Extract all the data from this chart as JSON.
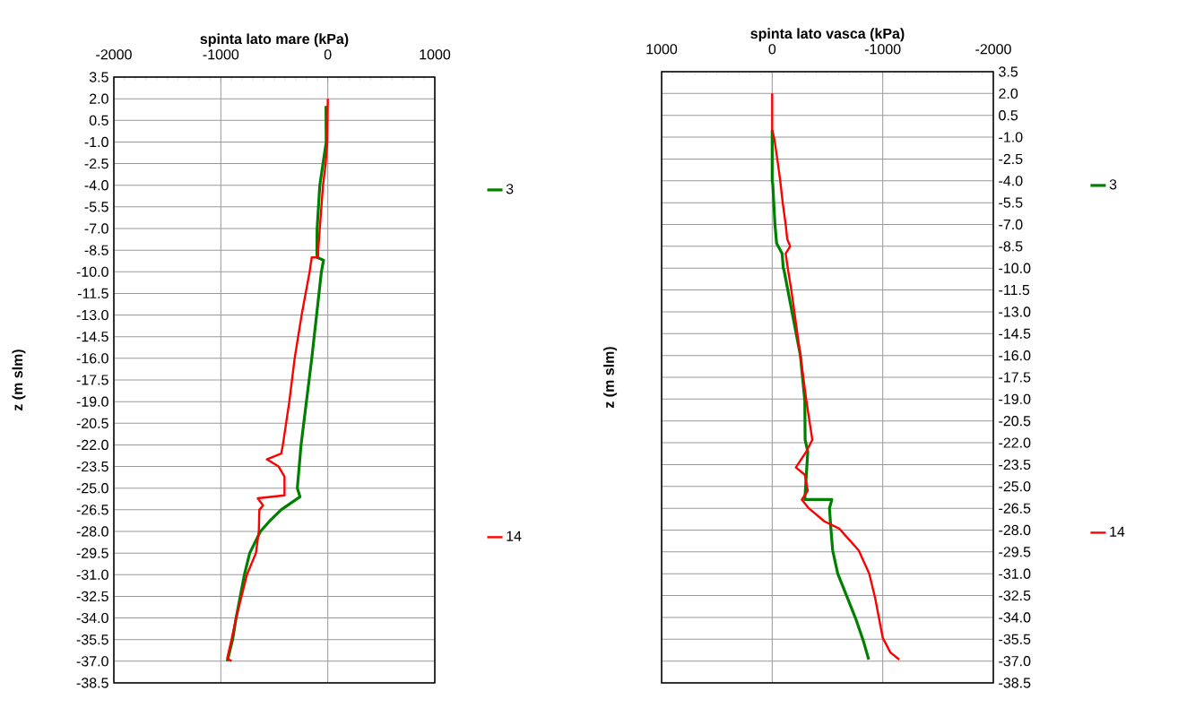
{
  "chart_data": [
    {
      "type": "line",
      "xlabel": "spinta lato mare (kPa)",
      "ylabel": "z  (m slm)",
      "xlim": [
        -2000,
        1000
      ],
      "xticks": [
        -2000,
        -1000,
        0,
        1000
      ],
      "ylim": [
        -38.5,
        3.5
      ],
      "yticks": [
        {
          "value": 3.5,
          "label": "3.5"
        },
        {
          "value": 2,
          "label": "2.0"
        },
        {
          "value": 0.5,
          "label": "0.5"
        },
        {
          "value": -1,
          "label": "-1.0"
        },
        {
          "value": -2.5,
          "label": "-2.5"
        },
        {
          "value": -4,
          "label": "-4.0"
        },
        {
          "value": -5.5,
          "label": "-5.5"
        },
        {
          "value": -7,
          "label": "-7.0"
        },
        {
          "value": -8.5,
          "label": "-8.5"
        },
        {
          "value": -10,
          "label": "-10.0"
        },
        {
          "value": -11.5,
          "label": "-11.5"
        },
        {
          "value": -13,
          "label": "-13.0"
        },
        {
          "value": -14.5,
          "label": "-14.5"
        },
        {
          "value": -16,
          "label": "-16.0"
        },
        {
          "value": -17.5,
          "label": "-17.5"
        },
        {
          "value": -19,
          "label": "-19.0"
        },
        {
          "value": -20.5,
          "label": "-20.5"
        },
        {
          "value": -22,
          "label": "-22.0"
        },
        {
          "value": -23.5,
          "label": "-23.5"
        },
        {
          "value": -25,
          "label": "-25.0"
        },
        {
          "value": -26.5,
          "label": "-26.5"
        },
        {
          "value": -28,
          "label": "-28.0"
        },
        {
          "value": -29.5,
          "label": "-29.5"
        },
        {
          "value": -31,
          "label": "-31.0"
        },
        {
          "value": -32.5,
          "label": "-32.5"
        },
        {
          "value": -34,
          "label": "-34.0"
        },
        {
          "value": -35.5,
          "label": "-35.5"
        },
        {
          "value": -37,
          "label": "-37.0"
        },
        {
          "value": -38.5,
          "label": "-38.5"
        }
      ],
      "grid": true,
      "legend": "right",
      "series": [
        {
          "name": "3",
          "color": "#008000",
          "x": [
            -17,
            -15,
            -75,
            -100,
            -102,
            -100,
            -40,
            -60,
            -150,
            -250,
            -285,
            -260,
            -437,
            -546,
            -630,
            -730,
            -780,
            -857,
            -890,
            -940
          ],
          "values": [
            1.5,
            -1.0,
            -4.0,
            -7.0,
            -8.5,
            -9.0,
            -9.2,
            -10.0,
            -16.0,
            -22.0,
            -25.0,
            -25.6,
            -26.5,
            -27.3,
            -28.0,
            -29.5,
            -31.0,
            -34.0,
            -35.5,
            -37.0
          ]
        },
        {
          "name": "14",
          "color": "#ff0000",
          "x": [
            0,
            -5,
            -20,
            -45,
            -75,
            -90,
            -90,
            -150,
            -170,
            -245,
            -310,
            -360,
            -420,
            -435,
            -570,
            -460,
            -405,
            -405,
            -655,
            -605,
            -640,
            -645,
            -672,
            -756,
            -857,
            -900,
            -940,
            -900
          ],
          "values": [
            2.0,
            -1.0,
            -2.5,
            -4.0,
            -7.0,
            -8.5,
            -9.0,
            -9.0,
            -10.0,
            -13.0,
            -16.0,
            -19.0,
            -22.0,
            -22.6,
            -23.0,
            -23.5,
            -24.2,
            -25.5,
            -25.7,
            -26.2,
            -26.5,
            -28.0,
            -29.5,
            -31.0,
            -34.0,
            -35.5,
            -36.8,
            -37.0
          ]
        }
      ]
    },
    {
      "type": "line",
      "xlabel": "spinta lato vasca (kPa)",
      "ylabel": "z  (m slm)",
      "xlim": [
        1000,
        -2000
      ],
      "xticks": [
        1000,
        0,
        -1000,
        -2000
      ],
      "ylim": [
        -38.5,
        3.5
      ],
      "yticks": [
        {
          "value": 3.5,
          "label": "3.5"
        },
        {
          "value": 2,
          "label": "2.0"
        },
        {
          "value": 0.5,
          "label": "0.5"
        },
        {
          "value": -1,
          "label": "-1.0"
        },
        {
          "value": -2.5,
          "label": "-2.5"
        },
        {
          "value": -4,
          "label": "-4.0"
        },
        {
          "value": -5.5,
          "label": "-5.5"
        },
        {
          "value": -7,
          "label": "-7.0"
        },
        {
          "value": -8.5,
          "label": "-8.5"
        },
        {
          "value": -10,
          "label": "-10.0"
        },
        {
          "value": -11.5,
          "label": "-11.5"
        },
        {
          "value": -13,
          "label": "-13.0"
        },
        {
          "value": -14.5,
          "label": "-14.5"
        },
        {
          "value": -16,
          "label": "-16.0"
        },
        {
          "value": -17.5,
          "label": "-17.5"
        },
        {
          "value": -19,
          "label": "-19.0"
        },
        {
          "value": -20.5,
          "label": "-20.5"
        },
        {
          "value": -22,
          "label": "-22.0"
        },
        {
          "value": -23.5,
          "label": "-23.5"
        },
        {
          "value": -25,
          "label": "-25.0"
        },
        {
          "value": -26.5,
          "label": "-26.5"
        },
        {
          "value": -28,
          "label": "-28.0"
        },
        {
          "value": -29.5,
          "label": "-29.5"
        },
        {
          "value": -31,
          "label": "-31.0"
        },
        {
          "value": -32.5,
          "label": "-32.5"
        },
        {
          "value": -34,
          "label": "-34.0"
        },
        {
          "value": -35.5,
          "label": "-35.5"
        },
        {
          "value": -37,
          "label": "-37.0"
        },
        {
          "value": -38.5,
          "label": "-38.5"
        }
      ],
      "grid": true,
      "legend": "right",
      "series": [
        {
          "name": "3",
          "color": "#008000",
          "x": [
            0,
            0,
            -5,
            -25,
            -40,
            -90,
            -100,
            -106,
            -255,
            -295,
            -298,
            -322,
            -295,
            -540,
            -518,
            -531,
            -547,
            -593,
            -683,
            -756,
            -824,
            -873
          ],
          "values": [
            -0.5,
            -4.0,
            -4.2,
            -7.0,
            -8.3,
            -9.0,
            -10.0,
            -10.1,
            -16.0,
            -19.1,
            -21.8,
            -22.6,
            -25.9,
            -25.9,
            -26.5,
            -27.9,
            -29.4,
            -31.0,
            -32.7,
            -34.1,
            -35.6,
            -36.9
          ]
        },
        {
          "name": "14",
          "color": "#ff0000",
          "x": [
            0,
            0,
            -19,
            -46,
            -73,
            -95,
            -122,
            -136,
            -163,
            -122,
            -141,
            -173,
            -255,
            -309,
            -363,
            -309,
            -214,
            -295,
            -322,
            -268,
            -331,
            -472,
            -607,
            -783,
            -878,
            -932,
            -1000,
            -1068,
            -1149
          ],
          "values": [
            2.0,
            -0.5,
            -1.1,
            -2.5,
            -4.0,
            -5.5,
            -7.0,
            -8.0,
            -8.5,
            -9.0,
            -10.0,
            -11.5,
            -16.0,
            -19.1,
            -21.8,
            -22.6,
            -23.7,
            -24.2,
            -25.3,
            -25.9,
            -26.5,
            -27.4,
            -27.9,
            -29.4,
            -31.0,
            -32.7,
            -35.4,
            -36.4,
            -36.9
          ]
        }
      ]
    }
  ]
}
